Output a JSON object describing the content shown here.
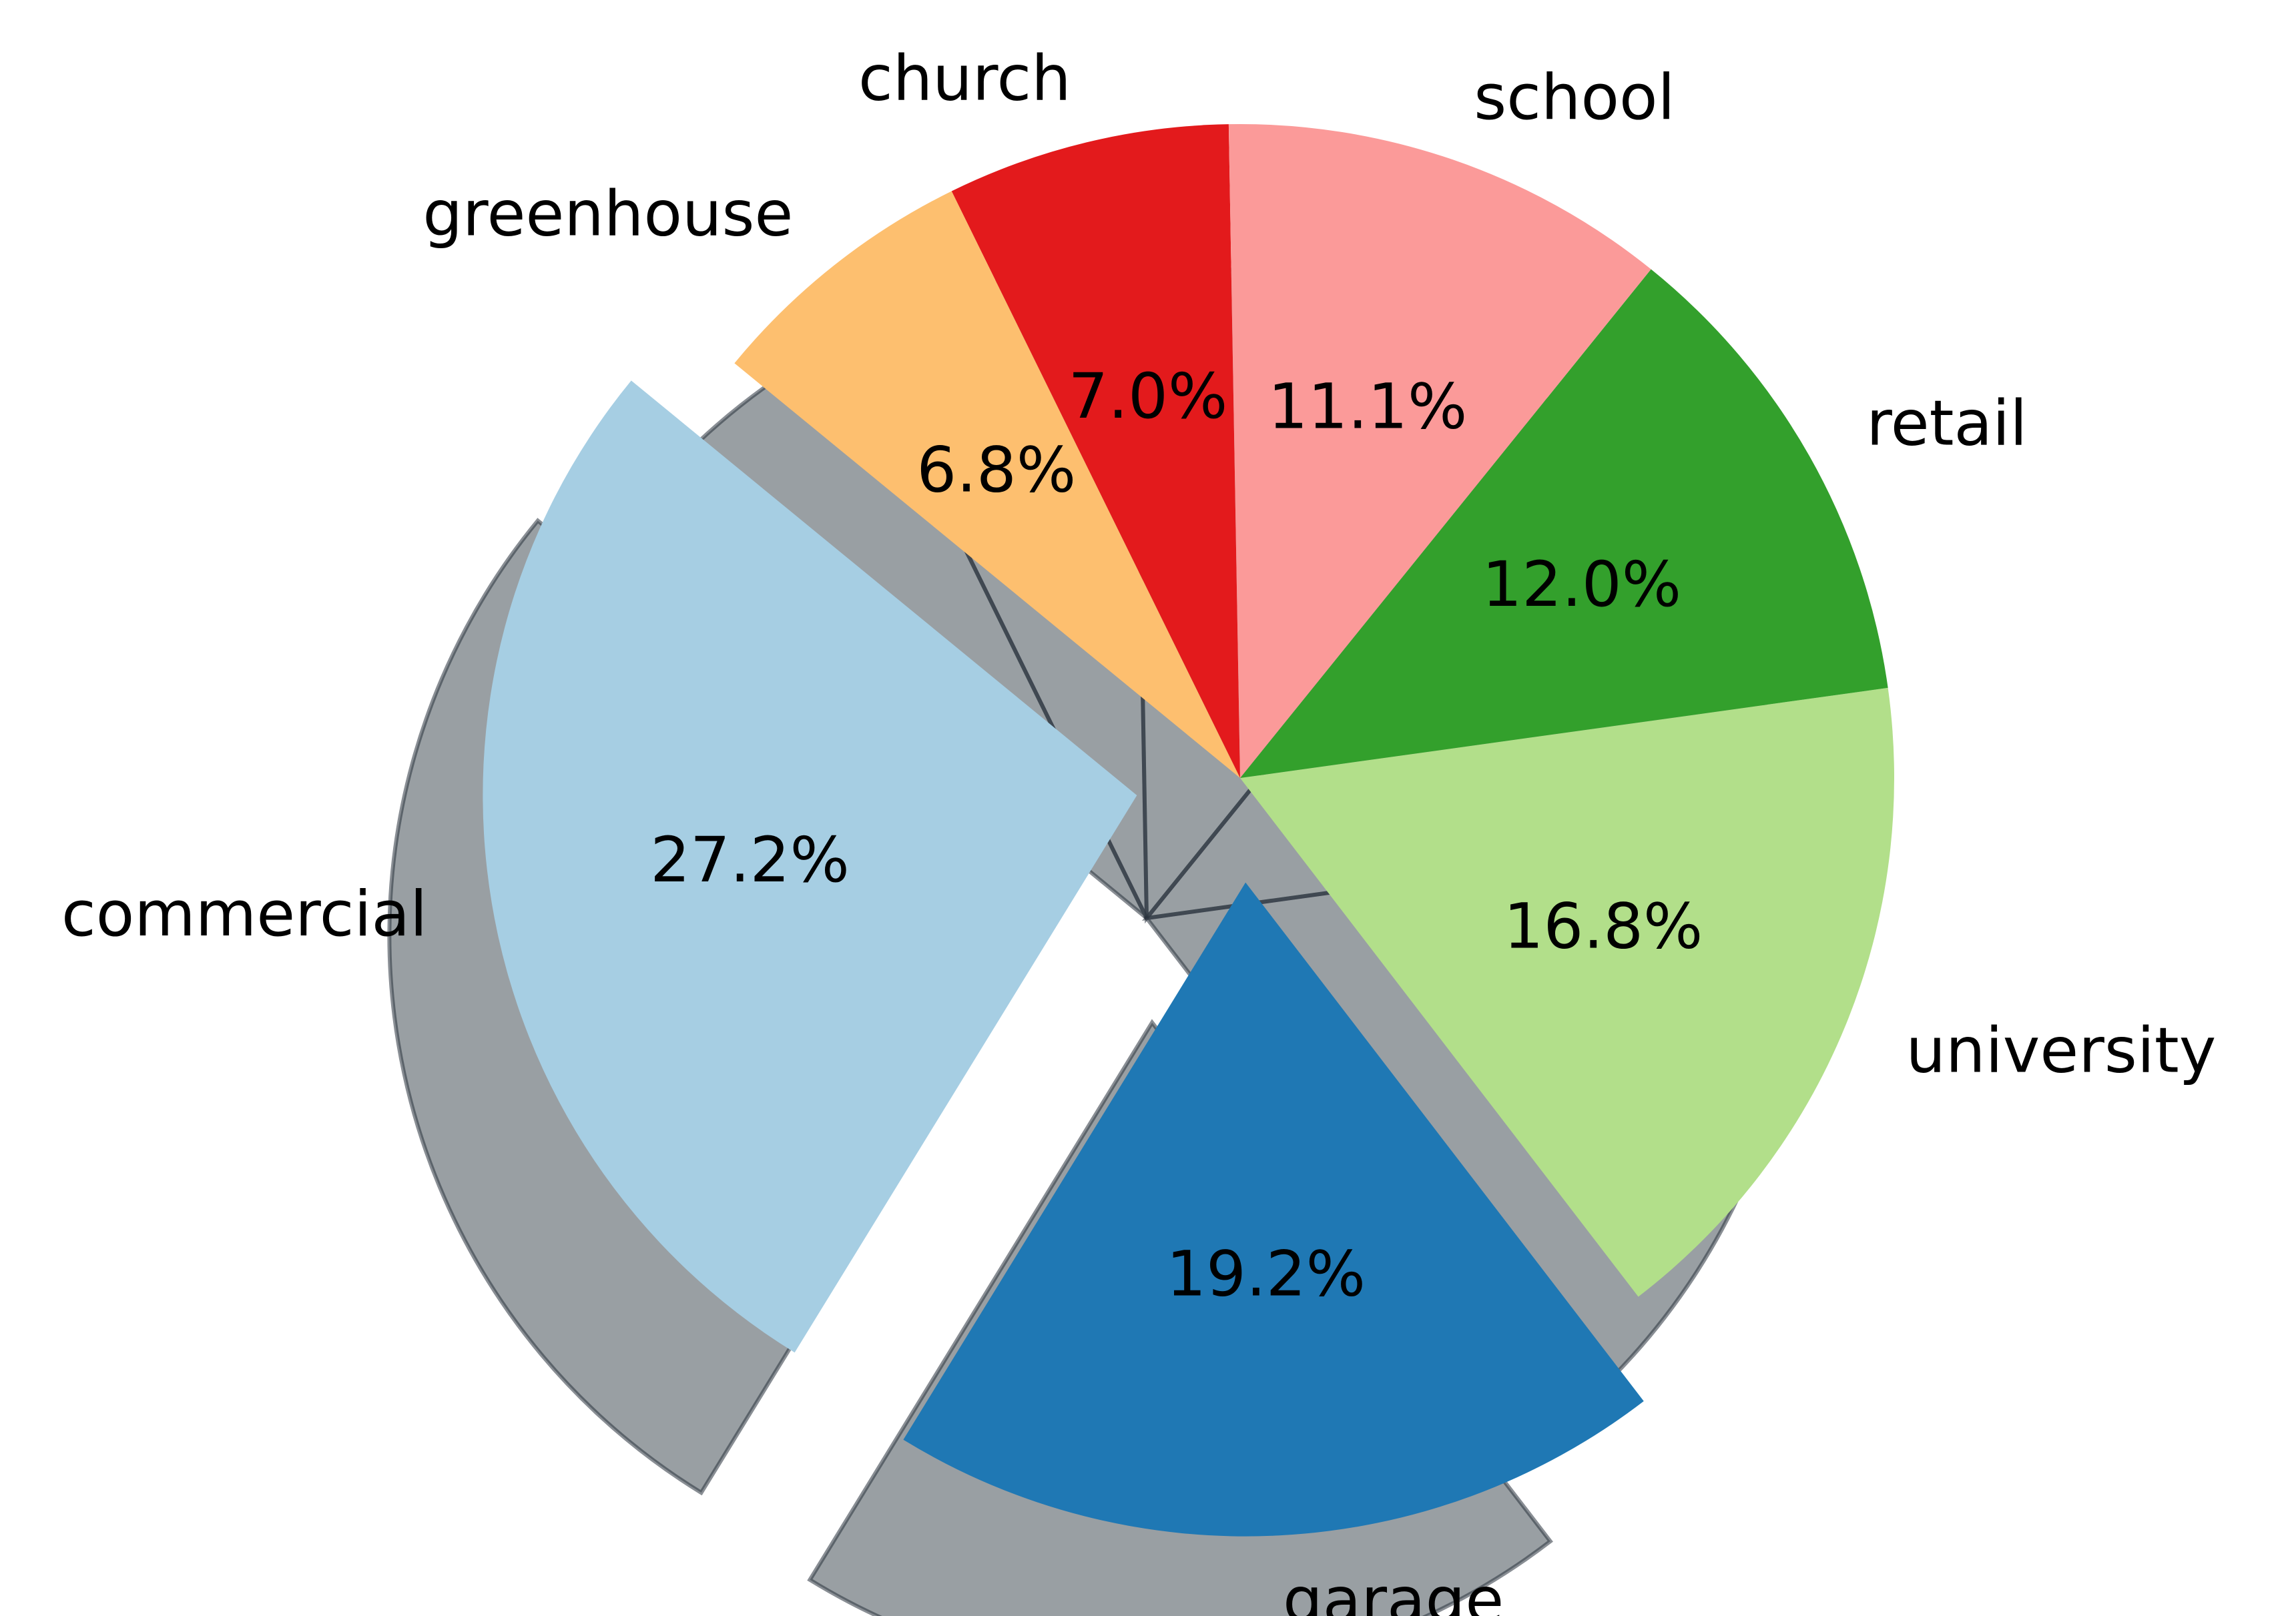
{
  "chart_data": {
    "type": "pie",
    "title": "",
    "slices": [
      {
        "label": "church",
        "value": 7.0,
        "pct_text": "7.0%",
        "color": "#e31a1c",
        "exploded": false
      },
      {
        "label": "greenhouse",
        "value": 6.8,
        "pct_text": "6.8%",
        "color": "#fdbf6f",
        "exploded": false
      },
      {
        "label": "commercial",
        "value": 27.2,
        "pct_text": "27.2%",
        "color": "#a6cee3",
        "exploded": true
      },
      {
        "label": "garage",
        "value": 19.2,
        "pct_text": "19.2%",
        "color": "#1f78b4",
        "exploded": true
      },
      {
        "label": "university",
        "value": 16.8,
        "pct_text": "16.8%",
        "color": "#b2df8a",
        "exploded": false
      },
      {
        "label": "retail",
        "value": 12.0,
        "pct_text": "12.0%",
        "color": "#33a02c",
        "exploded": false
      },
      {
        "label": "school",
        "value": 11.1,
        "pct_text": "11.1%",
        "color": "#fb9a99",
        "exploded": false
      }
    ],
    "start_angle_deg": 91,
    "direction": "counterclockwise",
    "shadow": true,
    "legend": "none"
  }
}
